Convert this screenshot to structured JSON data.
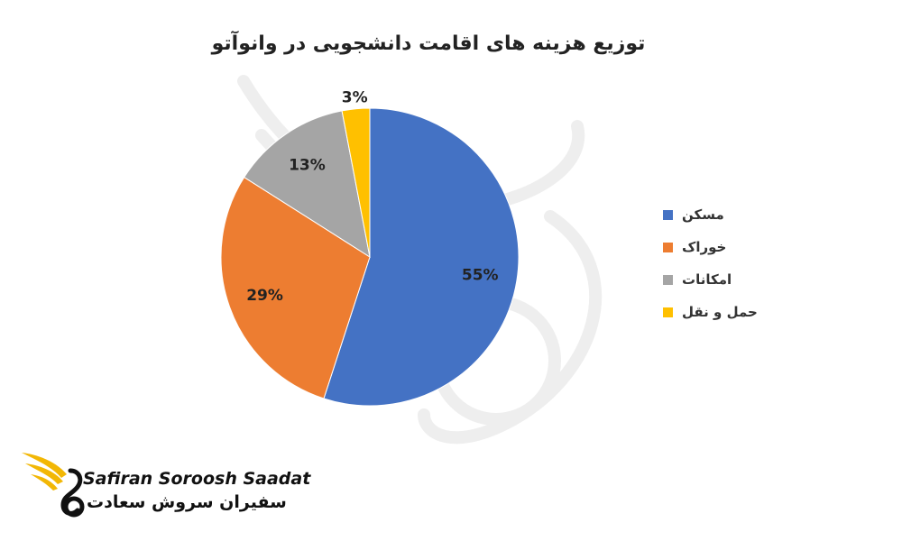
{
  "chart_data": {
    "type": "pie",
    "title": "توزیع هزینه های اقامت دانشجویی در وانوآتو",
    "categories": [
      "مسکن",
      "خوراک",
      "امکانات",
      "حمل و نقل"
    ],
    "values": [
      55,
      29,
      13,
      3
    ],
    "data_labels": [
      "55%",
      "29%",
      "13%",
      "3%"
    ],
    "colors": [
      "#4472C4",
      "#ED7D31",
      "#A5A5A5",
      "#FFC000"
    ],
    "legend_position": "right"
  },
  "brand": {
    "name_en": "Safiran Soroosh Saadat",
    "name_fa": "سفیران سروش سعادت",
    "logo_icon": "bird-wing-logo",
    "logo_colors": [
      "#F2B705",
      "#111111"
    ]
  }
}
